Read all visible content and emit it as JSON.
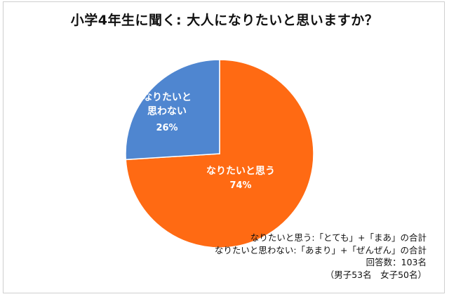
{
  "chart_data": {
    "type": "pie",
    "title": "小学4年生に聞く: 大人になりたいと思いますか？",
    "slices": [
      {
        "label": "なりたいと思う",
        "value": 74,
        "value_label": "74%",
        "color": "#ff6a13"
      },
      {
        "label": "なりたいと思わない",
        "label_lines": [
          "なりたいと",
          "思わない"
        ],
        "value": 26,
        "value_label": "26%",
        "color": "#4f86d0"
      }
    ],
    "notes": [
      "なりたいと思う:「とても」+「まあ」の合計",
      "なりたいと思わない:「あまり」+「ぜんぜん」の合計",
      "回答数：103名",
      "（男子53名　女子50名）"
    ]
  }
}
